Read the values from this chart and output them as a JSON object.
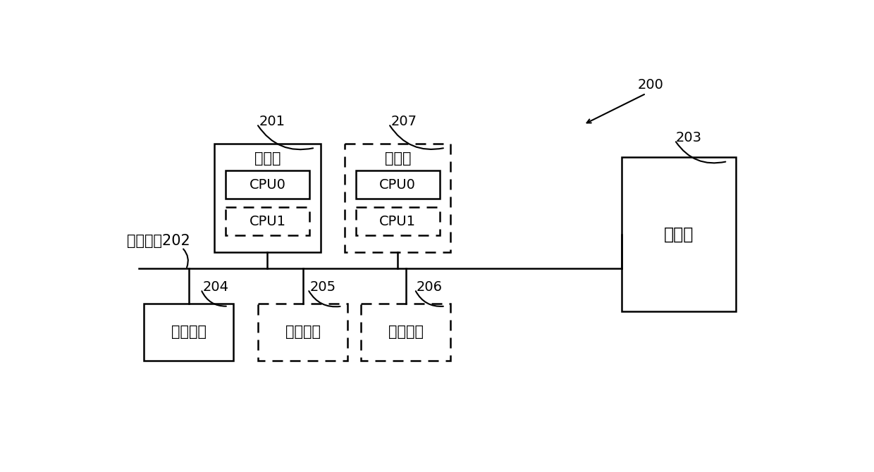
{
  "bg_color": "#ffffff",
  "label_200": "200",
  "label_201": "201",
  "label_202": "通信线路202",
  "label_203": "203",
  "label_204": "204",
  "label_205": "205",
  "label_206": "206",
  "label_207": "207",
  "processor1_label": "处理器",
  "processor2_label": "处理器",
  "cpu0_label": "CPU0",
  "cpu1_label": "CPU1",
  "comm_label": "通信接口",
  "output_label": "输出设备",
  "input_label": "输入设备",
  "mem_label": "存储器"
}
